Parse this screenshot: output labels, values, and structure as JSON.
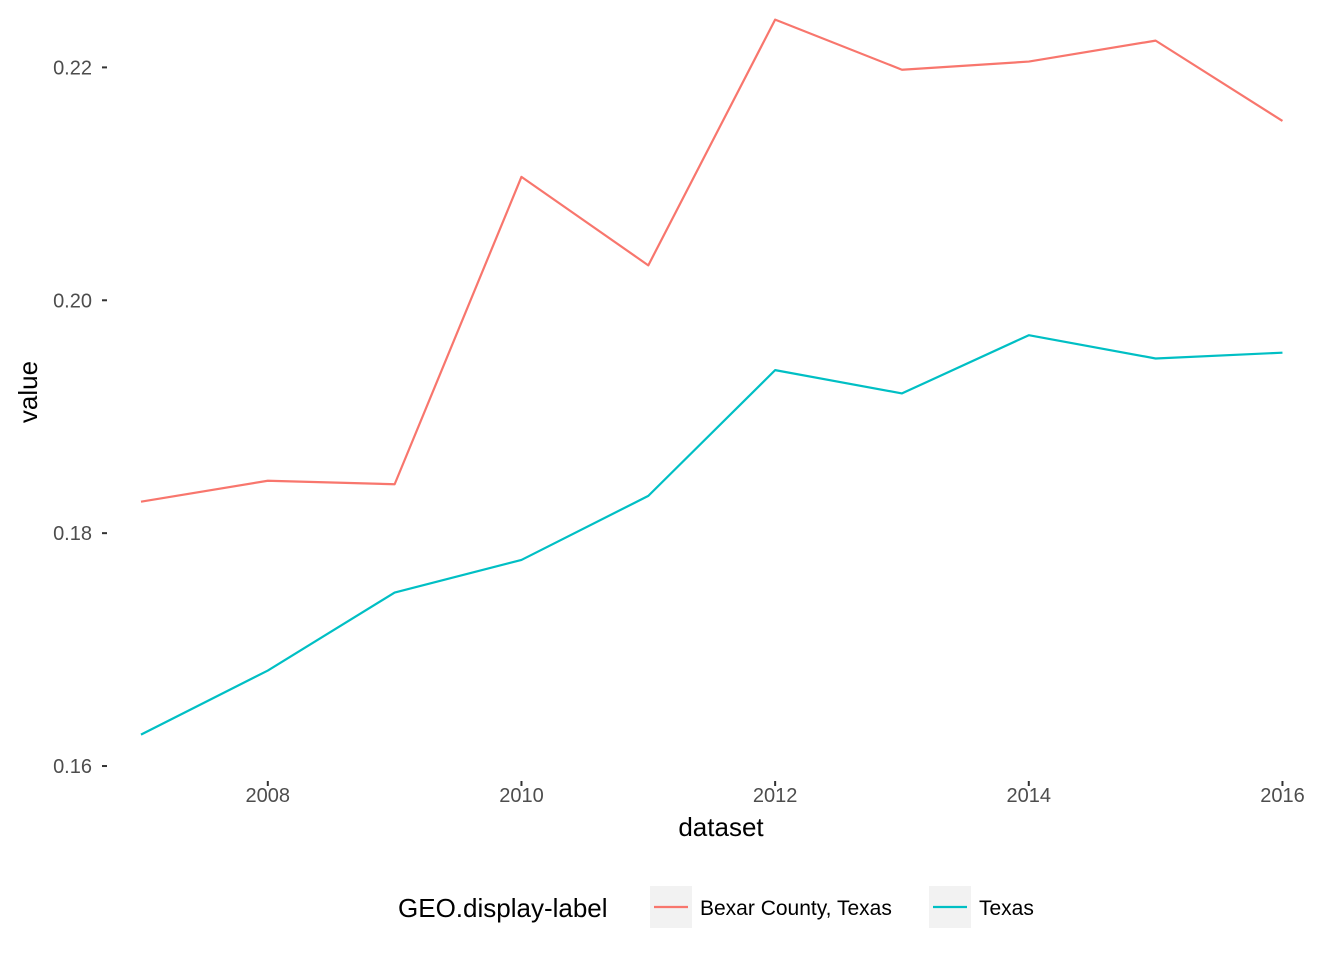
{
  "chart_data": {
    "type": "line",
    "title": "",
    "xlabel": "dataset",
    "ylabel": "value",
    "x": [
      2007,
      2008,
      2009,
      2010,
      2011,
      2012,
      2013,
      2014,
      2015,
      2016
    ],
    "xlim": [
      2006.74,
      2016.02
    ],
    "ylim": [
      0.1588,
      0.2245
    ],
    "xticks": [
      2008,
      2010,
      2012,
      2014,
      2016
    ],
    "yticks": [
      0.16,
      0.18,
      0.2,
      0.22
    ],
    "ytick_labels": [
      "0.16",
      "0.18",
      "0.20",
      "0.22"
    ],
    "grid": false,
    "legend": {
      "title": "GEO.display-label",
      "position": "bottom"
    },
    "series": [
      {
        "name": "Bexar County, Texas",
        "color": "#F8766D",
        "values": [
          0.1827,
          0.1845,
          0.1842,
          0.2106,
          0.203,
          0.2241,
          0.2198,
          0.2205,
          0.2223,
          0.2154
        ]
      },
      {
        "name": "Texas",
        "color": "#00BFC4",
        "values": [
          0.1627,
          0.1682,
          0.1749,
          0.1777,
          0.1832,
          0.194,
          0.192,
          0.197,
          0.195,
          0.1955
        ]
      }
    ]
  }
}
